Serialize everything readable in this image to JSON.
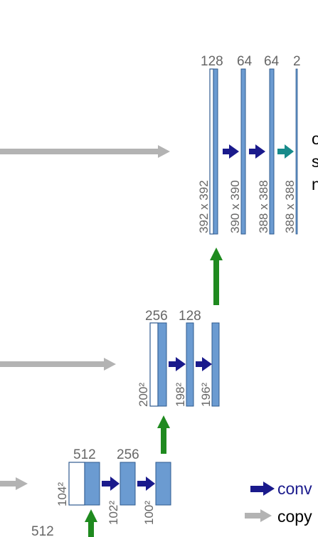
{
  "top_block": {
    "channels": [
      "128",
      "64",
      "64",
      "2"
    ],
    "sizes": [
      "392 x 392",
      "390 x 390",
      "388 x 388",
      "388 x 388"
    ],
    "output_text_lines": [
      "o",
      "s",
      "n"
    ]
  },
  "mid_block": {
    "channels": [
      "256",
      "128"
    ],
    "sizes": [
      "200²",
      "198²",
      "196²"
    ]
  },
  "low_block": {
    "channels": [
      "512",
      "256"
    ],
    "sizes": [
      "104²",
      "102²",
      "100²"
    ],
    "bottom_label": "512"
  },
  "legend": {
    "conv_label": "conv",
    "copy_label": "copy"
  },
  "colors": {
    "feature_map": "#6b9bd1",
    "feature_map_edge": "#2f5b8f",
    "conv_arrow": "#1a1a8c",
    "final_conv_arrow": "#178a8a",
    "up_arrow": "#1f8a1f",
    "copy_arrow": "#b3b3b3",
    "label_text": "#666666",
    "conv_legend_text": "#1a1a8c"
  }
}
